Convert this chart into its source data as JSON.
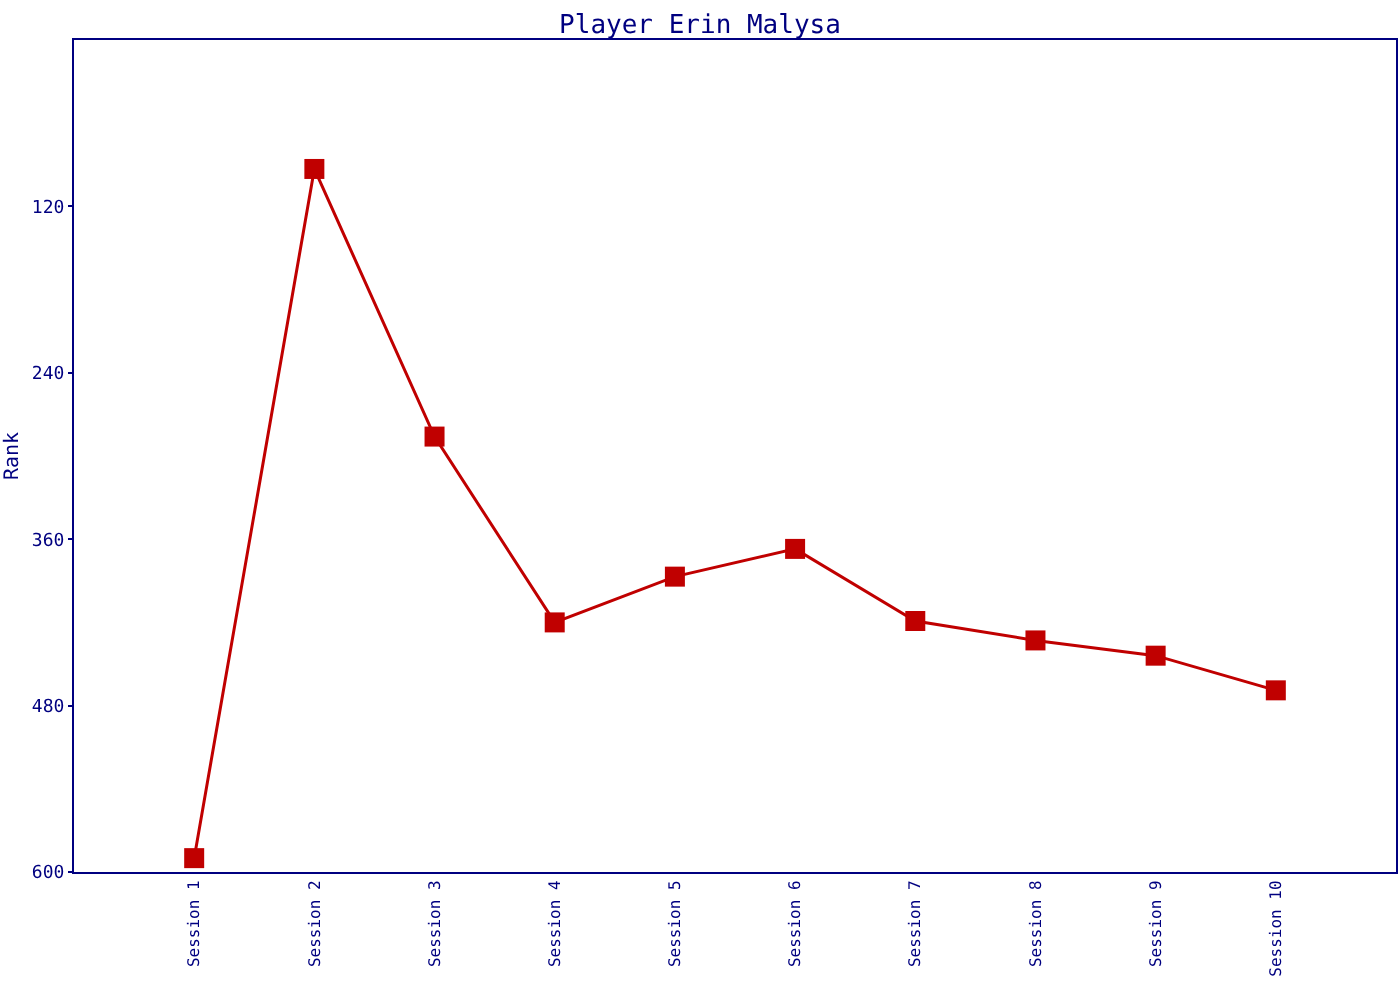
{
  "chart_data": {
    "type": "line",
    "title": "Player Erin Malysa",
    "ylabel": "Rank",
    "categories": [
      "Session 1",
      "Session 2",
      "Session 3",
      "Session 4",
      "Session 5",
      "Session 6",
      "Session 7",
      "Session 8",
      "Session 9",
      "Session 10"
    ],
    "series": [
      {
        "color": "#c00000",
        "values": [
          590,
          93,
          286,
          420,
          387,
          367,
          419,
          433,
          444,
          469
        ]
      }
    ],
    "ylim": [
      600,
      0
    ],
    "yticks": [
      120,
      240,
      360,
      480,
      600
    ],
    "marker": "square",
    "line_style": "solid"
  }
}
